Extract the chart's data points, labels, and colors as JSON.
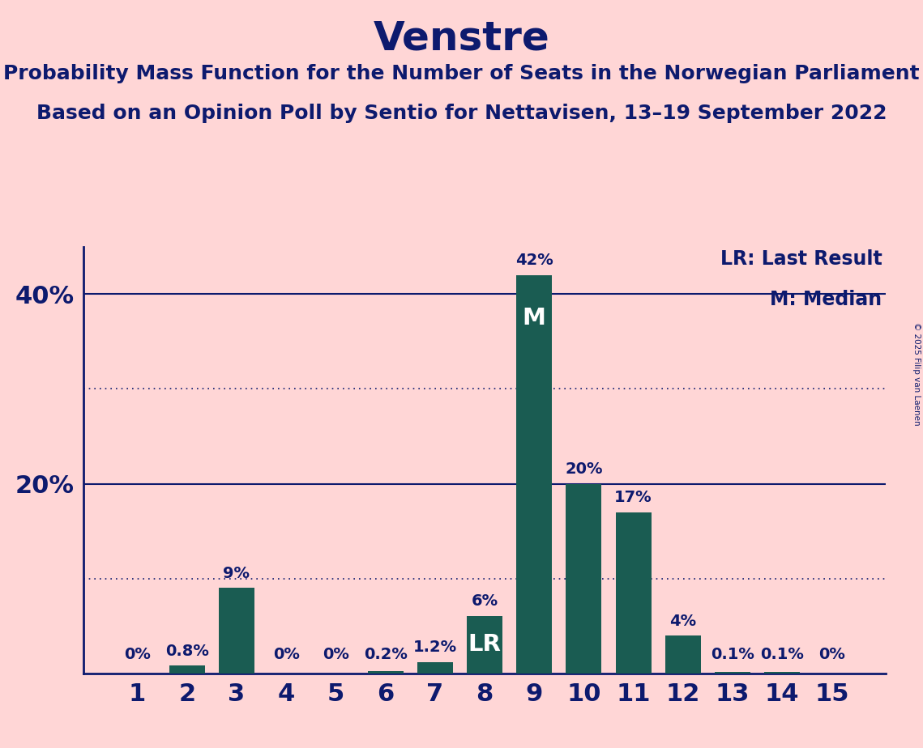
{
  "title": "Venstre",
  "subtitle1": "Probability Mass Function for the Number of Seats in the Norwegian Parliament",
  "subtitle2": "Based on an Opinion Poll by Sentio for Nettavisen, 13–19 September 2022",
  "copyright": "© 2025 Filip van Laenen",
  "categories": [
    1,
    2,
    3,
    4,
    5,
    6,
    7,
    8,
    9,
    10,
    11,
    12,
    13,
    14,
    15
  ],
  "values": [
    0.0,
    0.8,
    9.0,
    0.0,
    0.0,
    0.2,
    1.2,
    6.0,
    42.0,
    20.0,
    17.0,
    4.0,
    0.1,
    0.1,
    0.0
  ],
  "labels": [
    "0%",
    "0.8%",
    "9%",
    "0%",
    "0%",
    "0.2%",
    "1.2%",
    "6%",
    "42%",
    "20%",
    "17%",
    "4%",
    "0.1%",
    "0.1%",
    "0%"
  ],
  "bar_color": "#1a5c52",
  "background_color": "#ffd6d6",
  "text_color": "#0d1a6e",
  "lr_bar": 8,
  "median_bar": 9,
  "legend_lr": "LR: Last Result",
  "legend_m": "M: Median",
  "ylim": [
    0,
    45
  ],
  "yticks": [
    20,
    40
  ],
  "ytick_labels": [
    "20%",
    "40%"
  ],
  "dotted_lines": [
    10,
    30
  ],
  "solid_lines": [
    20,
    40
  ],
  "title_fontsize": 36,
  "subtitle_fontsize": 18,
  "label_fontsize": 14,
  "tick_fontsize": 22,
  "axis_color": "#0d1a6e",
  "lr_label_inside": "LR",
  "m_label_inside": "M"
}
